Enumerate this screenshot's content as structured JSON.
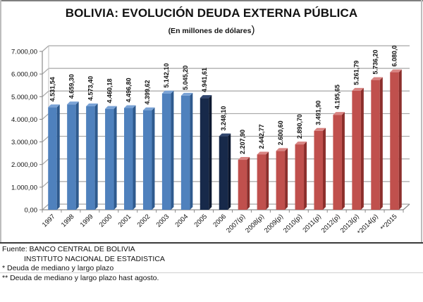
{
  "chart_data": {
    "type": "bar",
    "title": "BOLIVIA: EVOLUCIÓN DEUDA EXTERNA PÚBLICA",
    "subtitle": "(En millones de dólares",
    "subtitle_close": ")",
    "xlabel": "",
    "ylabel": "",
    "ylim": [
      0,
      7000
    ],
    "yticks": [
      0,
      1000,
      2000,
      3000,
      4000,
      5000,
      6000,
      7000
    ],
    "ytick_labels": [
      "0,00",
      "1.000,00",
      "2.000,00",
      "3.000,00",
      "4.000,00",
      "5.000,00",
      "6.000,00",
      "7.000,00"
    ],
    "grid": true,
    "legend": "none",
    "style": "3d-columns",
    "categories": [
      "1997",
      "1998",
      "1999",
      "2000",
      "2001",
      "2002",
      "2003",
      "2004",
      "2005",
      "2006",
      "2007(p)",
      "2008(p)",
      "2009(p)",
      "2010(p)",
      "2011(p)",
      "2012(p)",
      "2013(p)",
      "*2014(p)",
      "**2015"
    ],
    "values": [
      4531.54,
      4659.3,
      4573.4,
      4460.18,
      4496.8,
      4399.62,
      5142.1,
      5045.2,
      4941.61,
      3248.1,
      2207.9,
      2442.77,
      2600.6,
      2890.7,
      3491.9,
      4195.65,
      5261.79,
      5736.2,
      6080.0
    ],
    "data_labels": [
      "4.531,54",
      "4.659,30",
      "4.573,40",
      "4.460,18",
      "4.496,80",
      "4.399,62",
      "5.142,10",
      "5.045,20",
      "4.941,61",
      "3.248,10",
      "2.207,90",
      "2.442,77",
      "2.600,60",
      "2.890,70",
      "3.491,90",
      "4.195,65",
      "5.261,79",
      "5.736,20",
      "6.080,0"
    ],
    "bar_groups": [
      "blue",
      "blue",
      "blue",
      "blue",
      "blue",
      "blue",
      "blue",
      "blue",
      "navy",
      "navy",
      "red",
      "red",
      "red",
      "red",
      "red",
      "red",
      "red",
      "red",
      "red"
    ]
  },
  "colors": {
    "blue": {
      "front": "#4f81bd",
      "side": "#2e5a8e",
      "top": "#7aa3d6"
    },
    "navy": {
      "front": "#17294a",
      "side": "#0c1830",
      "top": "#31466e"
    },
    "red": {
      "front": "#c0504d",
      "side": "#8c2f2c",
      "top": "#d98583"
    },
    "grid": "#a6a6a6",
    "text": "#111111"
  },
  "notes": {
    "source_label": "Fuente: BANCO CENTRAL DE BOLIVIA",
    "source_line2": "INSTITUTO NACIONAL DE ESTADISTICA",
    "note1": "* Deuda de mediano y largo plazo",
    "note2": "** Deuda de mediano y largo plazo hast agosto."
  }
}
